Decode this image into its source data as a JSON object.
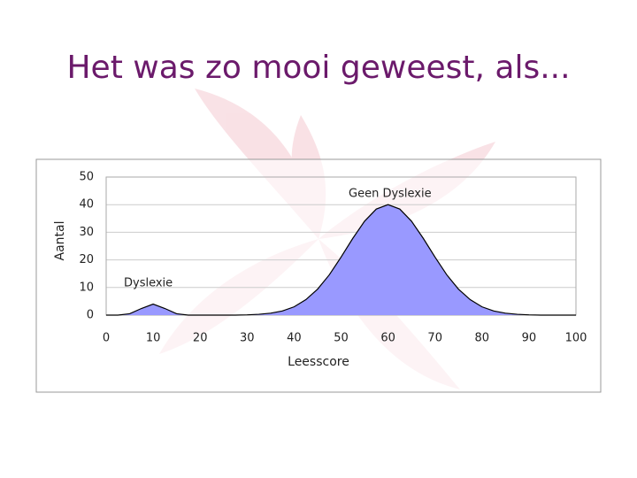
{
  "chart_data": {
    "type": "area",
    "title": "Het was zo mooi geweest, als...",
    "x_label": "Leesscore",
    "y_label": "Aantal",
    "annotations": [
      "Dyslexie",
      "Geen Dyslexie"
    ],
    "x": [
      0,
      2.5,
      5,
      7.5,
      10,
      12.5,
      15,
      17.5,
      20,
      22.5,
      25,
      27.5,
      30,
      32.5,
      35,
      37.5,
      40,
      42.5,
      45,
      47.5,
      50,
      52.5,
      55,
      57.5,
      60,
      62.5,
      65,
      67.5,
      70,
      72.5,
      75,
      77.5,
      80,
      82.5,
      85,
      87.5,
      90,
      92.5,
      95,
      97.5,
      100
    ],
    "series": [
      {
        "color": "#9999ff",
        "values": [
          0,
          0,
          0.5,
          2.4,
          4,
          2.4,
          0.5,
          0,
          0,
          0,
          0,
          0,
          0.1,
          0.3,
          0.7,
          1.5,
          3,
          5.6,
          9.4,
          14.6,
          21,
          27.8,
          34,
          38.4,
          40,
          38.4,
          34,
          27.8,
          21,
          14.6,
          9.4,
          5.6,
          3,
          1.5,
          0.7,
          0.3,
          0.1,
          0,
          0,
          0,
          0
        ]
      }
    ],
    "xlim": [
      0,
      100
    ],
    "xticks": [
      0,
      10,
      20,
      30,
      40,
      50,
      60,
      70,
      80,
      90,
      100
    ],
    "ylim": [
      0,
      50
    ],
    "yticks": [
      0,
      10,
      20,
      30,
      40,
      50
    ],
    "grid": true
  }
}
